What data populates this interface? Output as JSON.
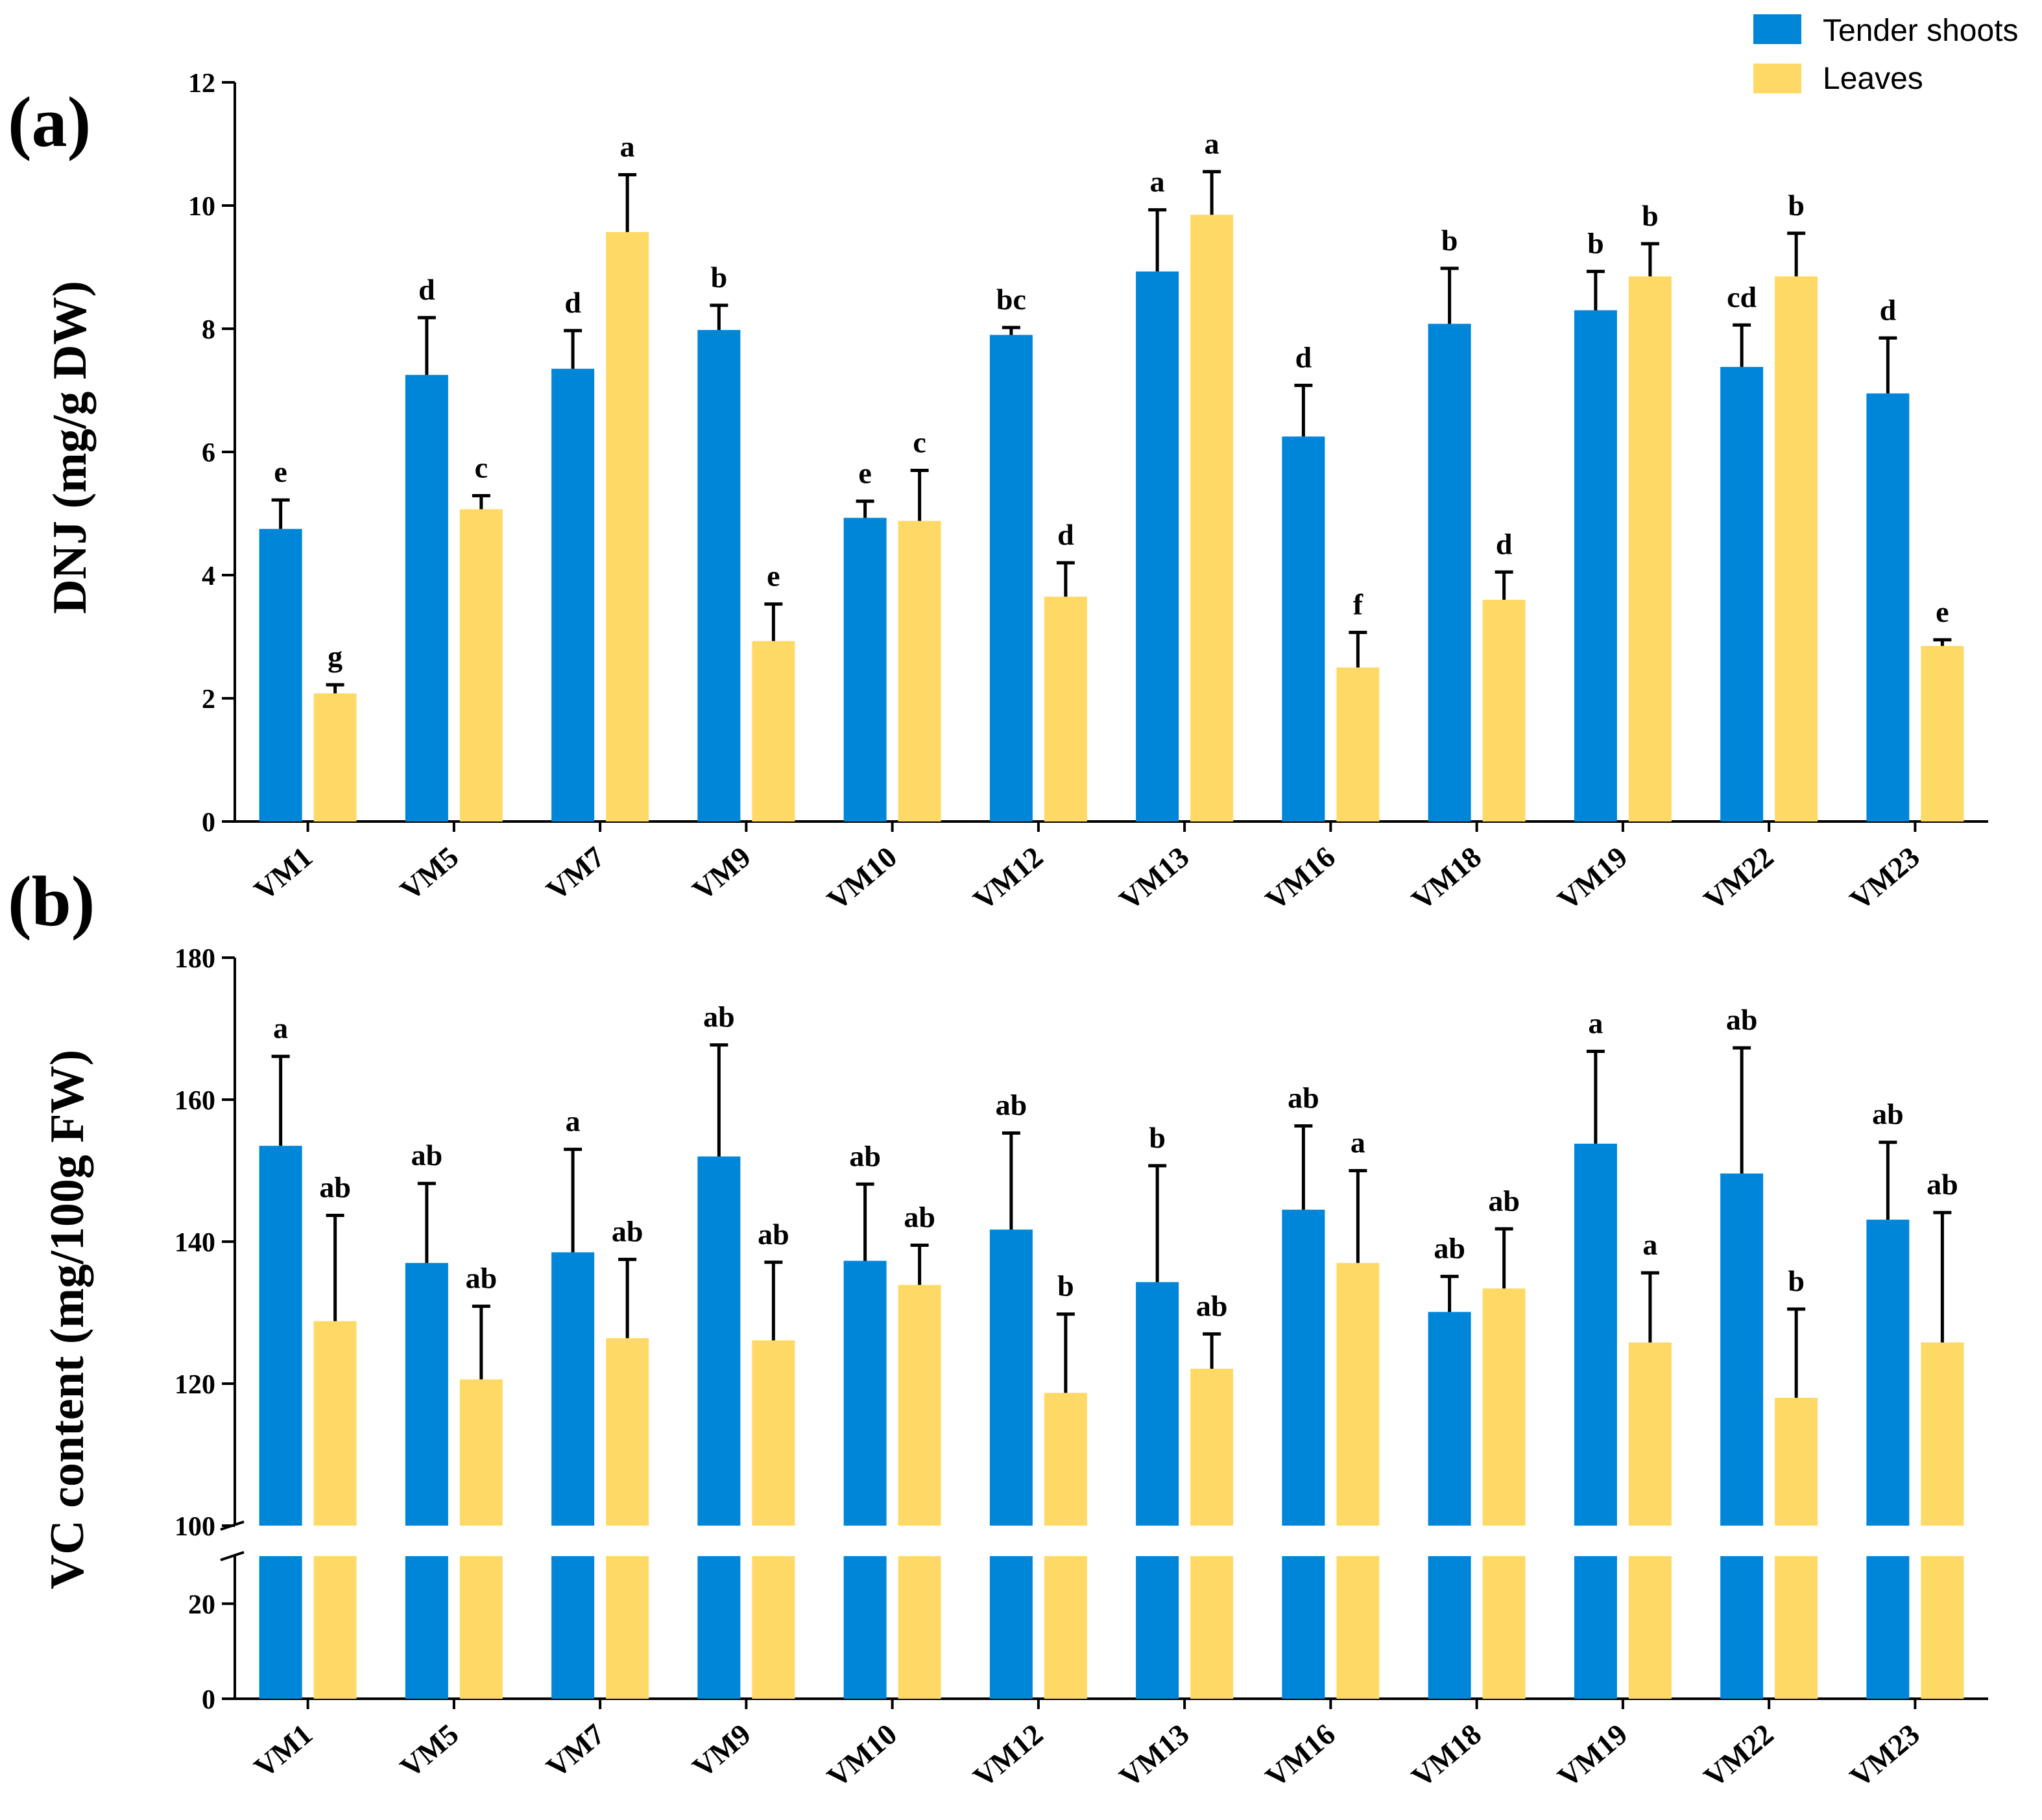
{
  "colors": {
    "tender": "#0086D8",
    "leaves": "#FFD966"
  },
  "legend": [
    {
      "name": "Tender shoots",
      "color_key": "tender"
    },
    {
      "name": "Leaves",
      "color_key": "leaves"
    }
  ],
  "chart_data": [
    {
      "type": "bar",
      "panel": "(a)",
      "ylabel": "DNJ (mg/g DW)",
      "ylim": [
        0,
        12
      ],
      "yticks": [
        0,
        2,
        4,
        6,
        8,
        10,
        12
      ],
      "categories": [
        "VM1",
        "VM5",
        "VM7",
        "VM9",
        "VM10",
        "VM12",
        "VM13",
        "VM16",
        "VM18",
        "VM19",
        "VM22",
        "VM23"
      ],
      "series": [
        {
          "name": "Tender shoots",
          "values": [
            4.75,
            7.25,
            7.35,
            7.98,
            4.93,
            7.9,
            8.93,
            6.25,
            8.08,
            8.3,
            7.38,
            6.95
          ],
          "errors": [
            0.47,
            0.93,
            0.62,
            0.4,
            0.27,
            0.12,
            1.0,
            0.83,
            0.9,
            0.63,
            0.68,
            0.9
          ],
          "labels": [
            "e",
            "d",
            "d",
            "b",
            "e",
            "bc",
            "a",
            "d",
            "b",
            "b",
            "cd",
            "d"
          ]
        },
        {
          "name": "Leaves",
          "values": [
            2.08,
            5.07,
            9.57,
            2.93,
            4.88,
            3.65,
            9.85,
            2.5,
            3.6,
            8.85,
            8.85,
            2.85
          ],
          "errors": [
            0.14,
            0.22,
            0.93,
            0.6,
            0.82,
            0.55,
            0.7,
            0.57,
            0.45,
            0.53,
            0.7,
            0.1
          ],
          "labels": [
            "g",
            "c",
            "a",
            "e",
            "c",
            "d",
            "a",
            "f",
            "d",
            "b",
            "b",
            "e"
          ]
        }
      ]
    },
    {
      "type": "bar",
      "panel": "(b)",
      "ylabel": "VC content (mg/100g FW)",
      "axis_break": true,
      "ylim_lower": [
        0,
        30
      ],
      "ylim_upper": [
        100,
        180
      ],
      "yticks_lower": [
        0,
        20
      ],
      "yticks_upper": [
        100,
        120,
        140,
        160,
        180
      ],
      "categories": [
        "VM1",
        "VM5",
        "VM7",
        "VM9",
        "VM10",
        "VM12",
        "VM13",
        "VM16",
        "VM18",
        "VM19",
        "VM22",
        "VM23"
      ],
      "series": [
        {
          "name": "Tender shoots",
          "values": [
            153.5,
            137,
            138.5,
            152,
            137.3,
            141.7,
            134.3,
            144.5,
            130.1,
            153.8,
            149.6,
            143.1
          ],
          "errors": [
            12.6,
            11.2,
            14.5,
            15.7,
            10.8,
            13.6,
            16.4,
            11.8,
            5.0,
            13.0,
            17.7,
            10.9
          ],
          "labels": [
            "a",
            "ab",
            "a",
            "ab",
            "ab",
            "ab",
            "b",
            "ab",
            "ab",
            "a",
            "ab",
            "ab"
          ]
        },
        {
          "name": "Leaves",
          "values": [
            128.8,
            120.6,
            126.4,
            126.1,
            133.9,
            118.7,
            122.1,
            137,
            133.4,
            125.8,
            118,
            125.8
          ],
          "errors": [
            14.9,
            10.3,
            11.1,
            11.0,
            5.6,
            11.1,
            4.9,
            13.0,
            8.4,
            9.8,
            12.5,
            18.3
          ],
          "labels": [
            "ab",
            "ab",
            "ab",
            "ab",
            "ab",
            "b",
            "ab",
            "a",
            "ab",
            "a",
            "b",
            "ab"
          ]
        }
      ]
    }
  ]
}
